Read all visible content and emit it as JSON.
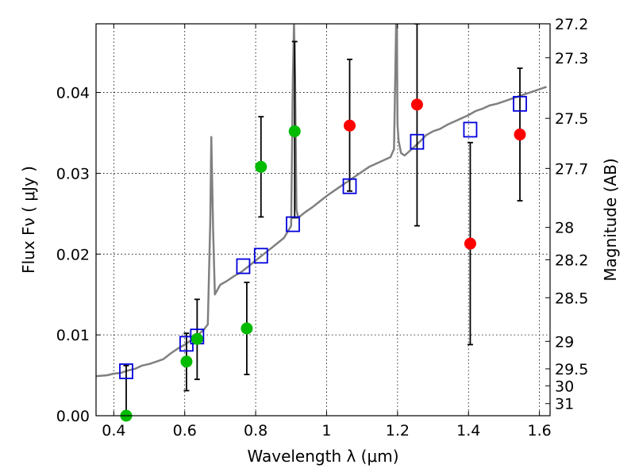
{
  "chart_data": {
    "type": "scatter",
    "xlabel": "Wavelength  λ (μm)",
    "ylabel": "Flux  Fν  ( μJy )",
    "y2label": "Magnitude (AB)",
    "xlim": [
      0.35,
      1.63
    ],
    "ylim": [
      0.0,
      0.0485
    ],
    "grid": true,
    "x_ticks": [
      0.4,
      0.6,
      0.8,
      1.0,
      1.2,
      1.4,
      1.6
    ],
    "x_tick_labels": [
      "0.4",
      "0.6",
      "0.8",
      "1",
      "1.2",
      "1.4",
      "1.6"
    ],
    "y_ticks": [
      0.0,
      0.01,
      0.02,
      0.03,
      0.04
    ],
    "y_tick_labels": [
      "0.00",
      "0.01",
      "0.02",
      "0.03",
      "0.04"
    ],
    "y2_ticks": [
      {
        "label": "27.2",
        "flux": 0.0485
      },
      {
        "label": "27.3",
        "flux": 0.0443
      },
      {
        "label": "27.5",
        "flux": 0.0368
      },
      {
        "label": "27.7",
        "flux": 0.0306
      },
      {
        "label": "28",
        "flux": 0.0233
      },
      {
        "label": "28.2",
        "flux": 0.0193
      },
      {
        "label": "28.5",
        "flux": 0.0146
      },
      {
        "label": "29",
        "flux": 0.0092
      },
      {
        "label": "29.5",
        "flux": 0.0058
      },
      {
        "label": "30",
        "flux": 0.0037
      },
      {
        "label": "31",
        "flux": 0.0015
      }
    ],
    "colors": {
      "spectrum": "#808080",
      "model": "#0000dd",
      "detection": "#00bb00",
      "dropout": "#ff0000",
      "errorbar": "#000000",
      "grid": "#000000"
    },
    "series": [
      {
        "kind": "spectrum",
        "x": [
          0.35,
          0.38,
          0.4,
          0.42,
          0.44,
          0.46,
          0.48,
          0.5,
          0.52,
          0.54,
          0.56,
          0.58,
          0.6,
          0.62,
          0.64,
          0.655,
          0.665,
          0.672,
          0.675,
          0.68,
          0.685,
          0.7,
          0.72,
          0.74,
          0.76,
          0.78,
          0.8,
          0.82,
          0.84,
          0.86,
          0.88,
          0.9,
          0.905,
          0.908,
          0.911,
          0.915,
          0.92,
          0.94,
          0.96,
          0.98,
          1.0,
          1.02,
          1.04,
          1.06,
          1.08,
          1.1,
          1.12,
          1.14,
          1.16,
          1.18,
          1.19,
          1.196,
          1.198,
          1.2,
          1.203,
          1.21,
          1.22,
          1.24,
          1.26,
          1.28,
          1.3,
          1.32,
          1.34,
          1.36,
          1.38,
          1.4,
          1.42,
          1.44,
          1.46,
          1.48,
          1.5,
          1.52,
          1.54,
          1.56,
          1.58,
          1.6,
          1.62
        ],
        "y": [
          0.0049,
          0.005,
          0.0052,
          0.0053,
          0.0056,
          0.0058,
          0.0062,
          0.0064,
          0.0067,
          0.007,
          0.0077,
          0.0083,
          0.0088,
          0.0094,
          0.0101,
          0.0107,
          0.0113,
          0.024,
          0.0345,
          0.023,
          0.015,
          0.0162,
          0.0167,
          0.0173,
          0.0178,
          0.0185,
          0.0192,
          0.0199,
          0.0206,
          0.0213,
          0.022,
          0.0235,
          0.042,
          0.0485,
          0.042,
          0.0255,
          0.0245,
          0.0252,
          0.0258,
          0.0265,
          0.0272,
          0.0278,
          0.0284,
          0.029,
          0.0296,
          0.0302,
          0.0308,
          0.0312,
          0.0316,
          0.032,
          0.033,
          0.0485,
          0.0485,
          0.036,
          0.034,
          0.0325,
          0.0322,
          0.033,
          0.0338,
          0.0347,
          0.0352,
          0.0355,
          0.036,
          0.0364,
          0.0368,
          0.0372,
          0.0377,
          0.038,
          0.0384,
          0.0386,
          0.0389,
          0.0392,
          0.0395,
          0.0398,
          0.0401,
          0.0404,
          0.0407
        ]
      },
      {
        "kind": "model",
        "x": [
          0.435,
          0.605,
          0.635,
          0.765,
          0.815,
          0.905,
          1.065,
          1.255,
          1.405,
          1.545
        ],
        "y": [
          0.0055,
          0.0089,
          0.0098,
          0.0185,
          0.0198,
          0.0237,
          0.0284,
          0.0339,
          0.0354,
          0.0386
        ]
      },
      {
        "kind": "detection",
        "x": [
          0.435,
          0.605,
          0.635,
          0.775,
          0.815,
          0.91
        ],
        "y": [
          0.0,
          0.0067,
          0.0095,
          0.0108,
          0.0308,
          0.0352
        ],
        "err_low": [
          0.0,
          0.0031,
          0.0045,
          0.0051,
          0.0246,
          0.0245
        ],
        "err_high": [
          0.0062,
          0.0102,
          0.0144,
          0.0165,
          0.037,
          0.0463
        ]
      },
      {
        "kind": "dropout",
        "x": [
          1.065,
          1.255,
          1.405,
          1.545
        ],
        "y": [
          0.0359,
          0.0385,
          0.0213,
          0.0348
        ],
        "err_low": [
          0.0278,
          0.0235,
          0.0088,
          0.0266
        ],
        "err_high": [
          0.0441,
          0.0485,
          0.0338,
          0.043
        ]
      }
    ]
  }
}
